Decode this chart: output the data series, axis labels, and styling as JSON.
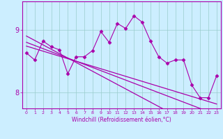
{
  "xlabel": "Windchill (Refroidissement éolien,°C)",
  "x": [
    0,
    1,
    2,
    3,
    4,
    5,
    6,
    7,
    8,
    9,
    10,
    11,
    12,
    13,
    14,
    15,
    16,
    17,
    18,
    19,
    20,
    21,
    22,
    23
  ],
  "y_main": [
    8.63,
    8.52,
    8.82,
    8.73,
    8.68,
    8.3,
    8.57,
    8.57,
    8.67,
    8.97,
    8.8,
    9.1,
    9.02,
    9.22,
    9.12,
    8.82,
    8.57,
    8.47,
    8.52,
    8.52,
    8.12,
    7.92,
    7.92,
    8.27
  ],
  "y_reg1": [
    8.9,
    8.83,
    8.76,
    8.69,
    8.62,
    8.55,
    8.48,
    8.41,
    8.34,
    8.27,
    8.2,
    8.13,
    8.06,
    7.99,
    7.92,
    7.85,
    7.78,
    7.71,
    7.64,
    7.57,
    7.5,
    7.43,
    7.36,
    7.29
  ],
  "y_reg2": [
    8.8,
    8.75,
    8.7,
    8.65,
    8.6,
    8.55,
    8.5,
    8.45,
    8.4,
    8.35,
    8.3,
    8.25,
    8.2,
    8.15,
    8.1,
    8.05,
    8.0,
    7.95,
    7.9,
    7.85,
    7.8,
    7.75,
    7.7,
    7.65
  ],
  "y_reg3": [
    8.74,
    8.7,
    8.66,
    8.62,
    8.58,
    8.54,
    8.5,
    8.46,
    8.42,
    8.38,
    8.34,
    8.3,
    8.26,
    8.22,
    8.18,
    8.14,
    8.1,
    8.06,
    8.02,
    7.98,
    7.94,
    7.9,
    7.86,
    7.82
  ],
  "line_color": "#aa00aa",
  "bg_color": "#cceeff",
  "grid_color": "#99cccc",
  "ylim": [
    7.75,
    9.45
  ],
  "yticks": [
    8.0,
    9.0
  ],
  "xlim": [
    -0.5,
    23.5
  ],
  "marker": "D",
  "markersize": 2.5,
  "linewidth": 0.8,
  "reg_linewidth": 0.9
}
